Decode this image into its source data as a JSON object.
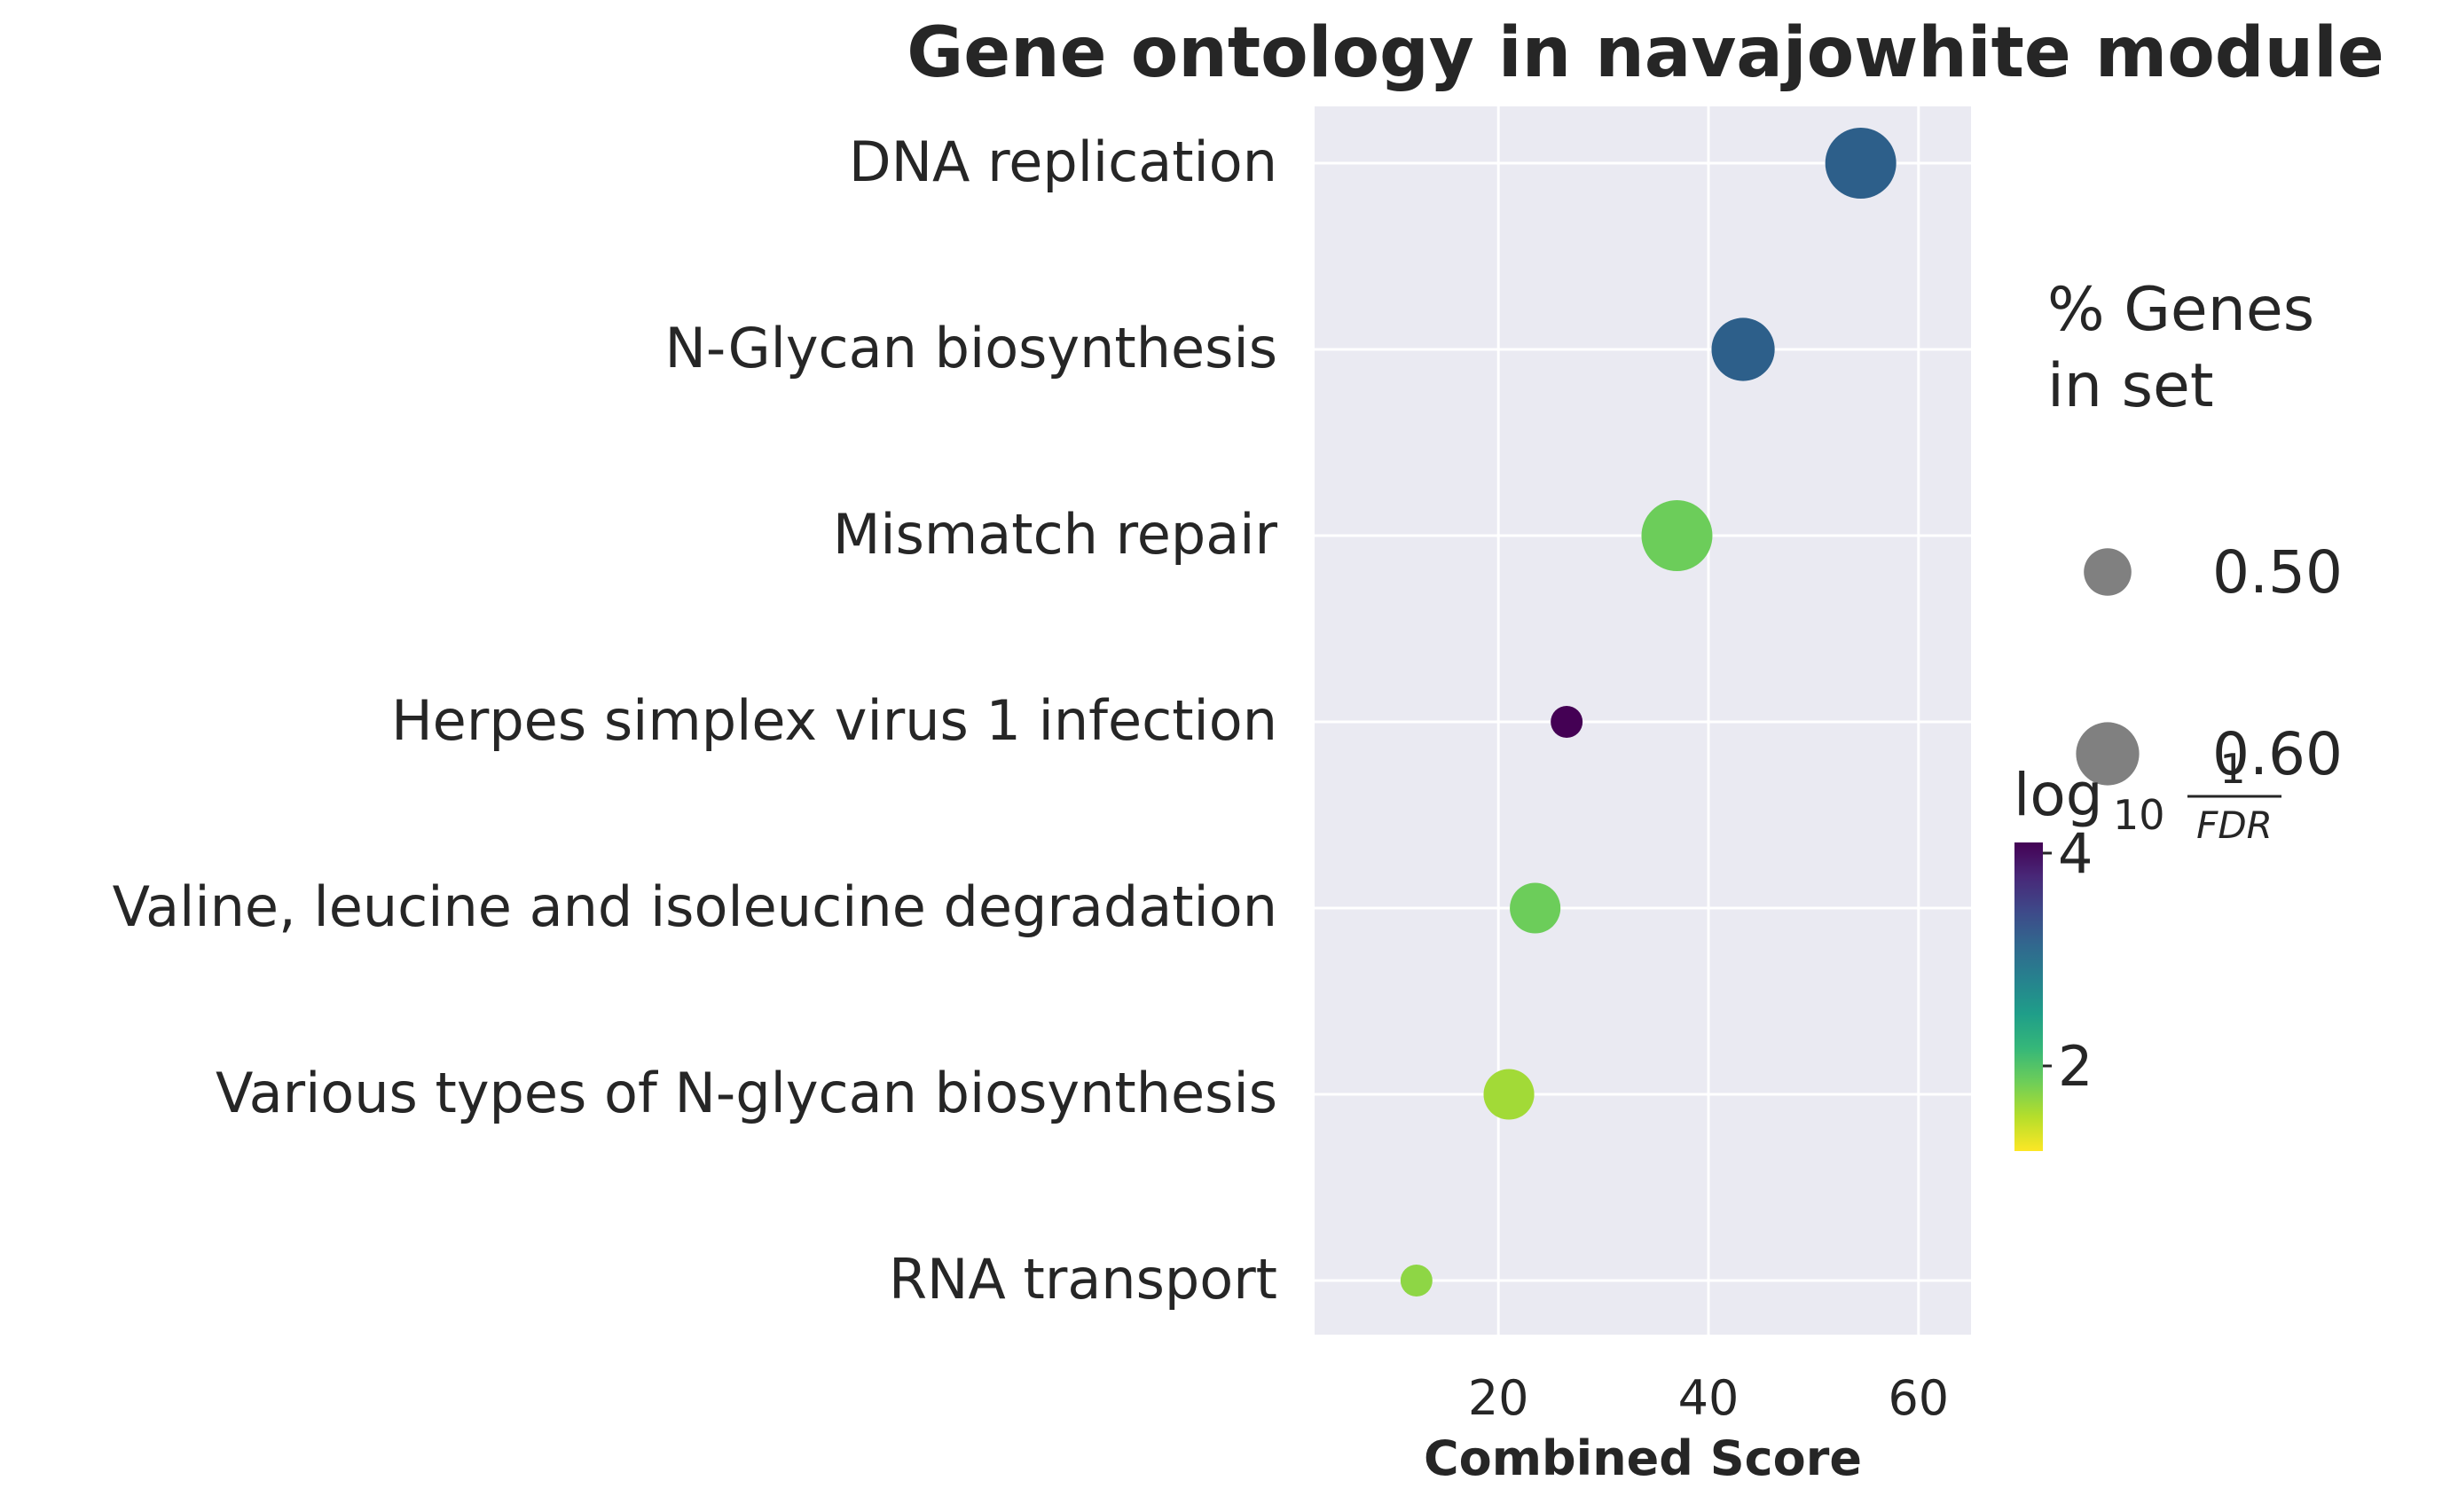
{
  "chart_data": {
    "type": "scatter",
    "title": "Gene ontology in navajowhite module",
    "xlabel": "Combined Score",
    "ylabel": "",
    "xlim": [
      2.5,
      65
    ],
    "xticks": [
      20,
      40,
      60
    ],
    "grid": true,
    "terms": [
      "DNA replication",
      "N-Glycan biosynthesis",
      "Mismatch repair",
      "Herpes simplex virus 1 infection",
      "Valine, leucine and isoleucine degradation",
      "Various types of N-glycan biosynthesis",
      "RNA transport"
    ],
    "points": [
      {
        "term": "DNA replication",
        "combined_score": 54.5,
        "pct_genes": 0.65,
        "log10_inv_fdr": 3.2,
        "color": "#2d5f8a"
      },
      {
        "term": "N-Glycan biosynthesis",
        "combined_score": 43.3,
        "pct_genes": 0.6,
        "log10_inv_fdr": 3.2,
        "color": "#2d5f8a"
      },
      {
        "term": "Mismatch repair",
        "combined_score": 37.0,
        "pct_genes": 0.65,
        "log10_inv_fdr": 1.6,
        "color": "#6ccd5a"
      },
      {
        "term": "Herpes simplex virus 1 infection",
        "combined_score": 26.5,
        "pct_genes": 0.4,
        "log10_inv_fdr": 4.0,
        "color": "#440154"
      },
      {
        "term": "Valine, leucine and isoleucine degradation",
        "combined_score": 23.5,
        "pct_genes": 0.52,
        "log10_inv_fdr": 1.6,
        "color": "#6ccd5a"
      },
      {
        "term": "Various types of N-glycan biosynthesis",
        "combined_score": 21.0,
        "pct_genes": 0.52,
        "log10_inv_fdr": 1.4,
        "color": "#a2da37"
      },
      {
        "term": "RNA transport",
        "combined_score": 12.2,
        "pct_genes": 0.4,
        "log10_inv_fdr": 1.5,
        "color": "#8ed645"
      }
    ],
    "size_legend": {
      "title_line1": "% Genes",
      "title_line2": "in set",
      "entries": [
        {
          "label": "0.50",
          "value": 0.5
        },
        {
          "label": "0.60",
          "value": 0.6
        }
      ],
      "placement": "right"
    },
    "colorbar": {
      "label_base": "log",
      "label_sub": "10",
      "frac_num": "1",
      "frac_den": "FDR",
      "range": [
        1.2,
        4.1
      ],
      "ticks": [
        {
          "label": "2",
          "value": 2
        },
        {
          "label": "4",
          "value": 4
        }
      ],
      "colormap": "viridis_r",
      "stops": [
        "#fde725",
        "#b5de2b",
        "#6ece58",
        "#35b779",
        "#1f9e89",
        "#26828e",
        "#31688e",
        "#3e4989",
        "#482878",
        "#440154"
      ],
      "placement": "right"
    }
  }
}
